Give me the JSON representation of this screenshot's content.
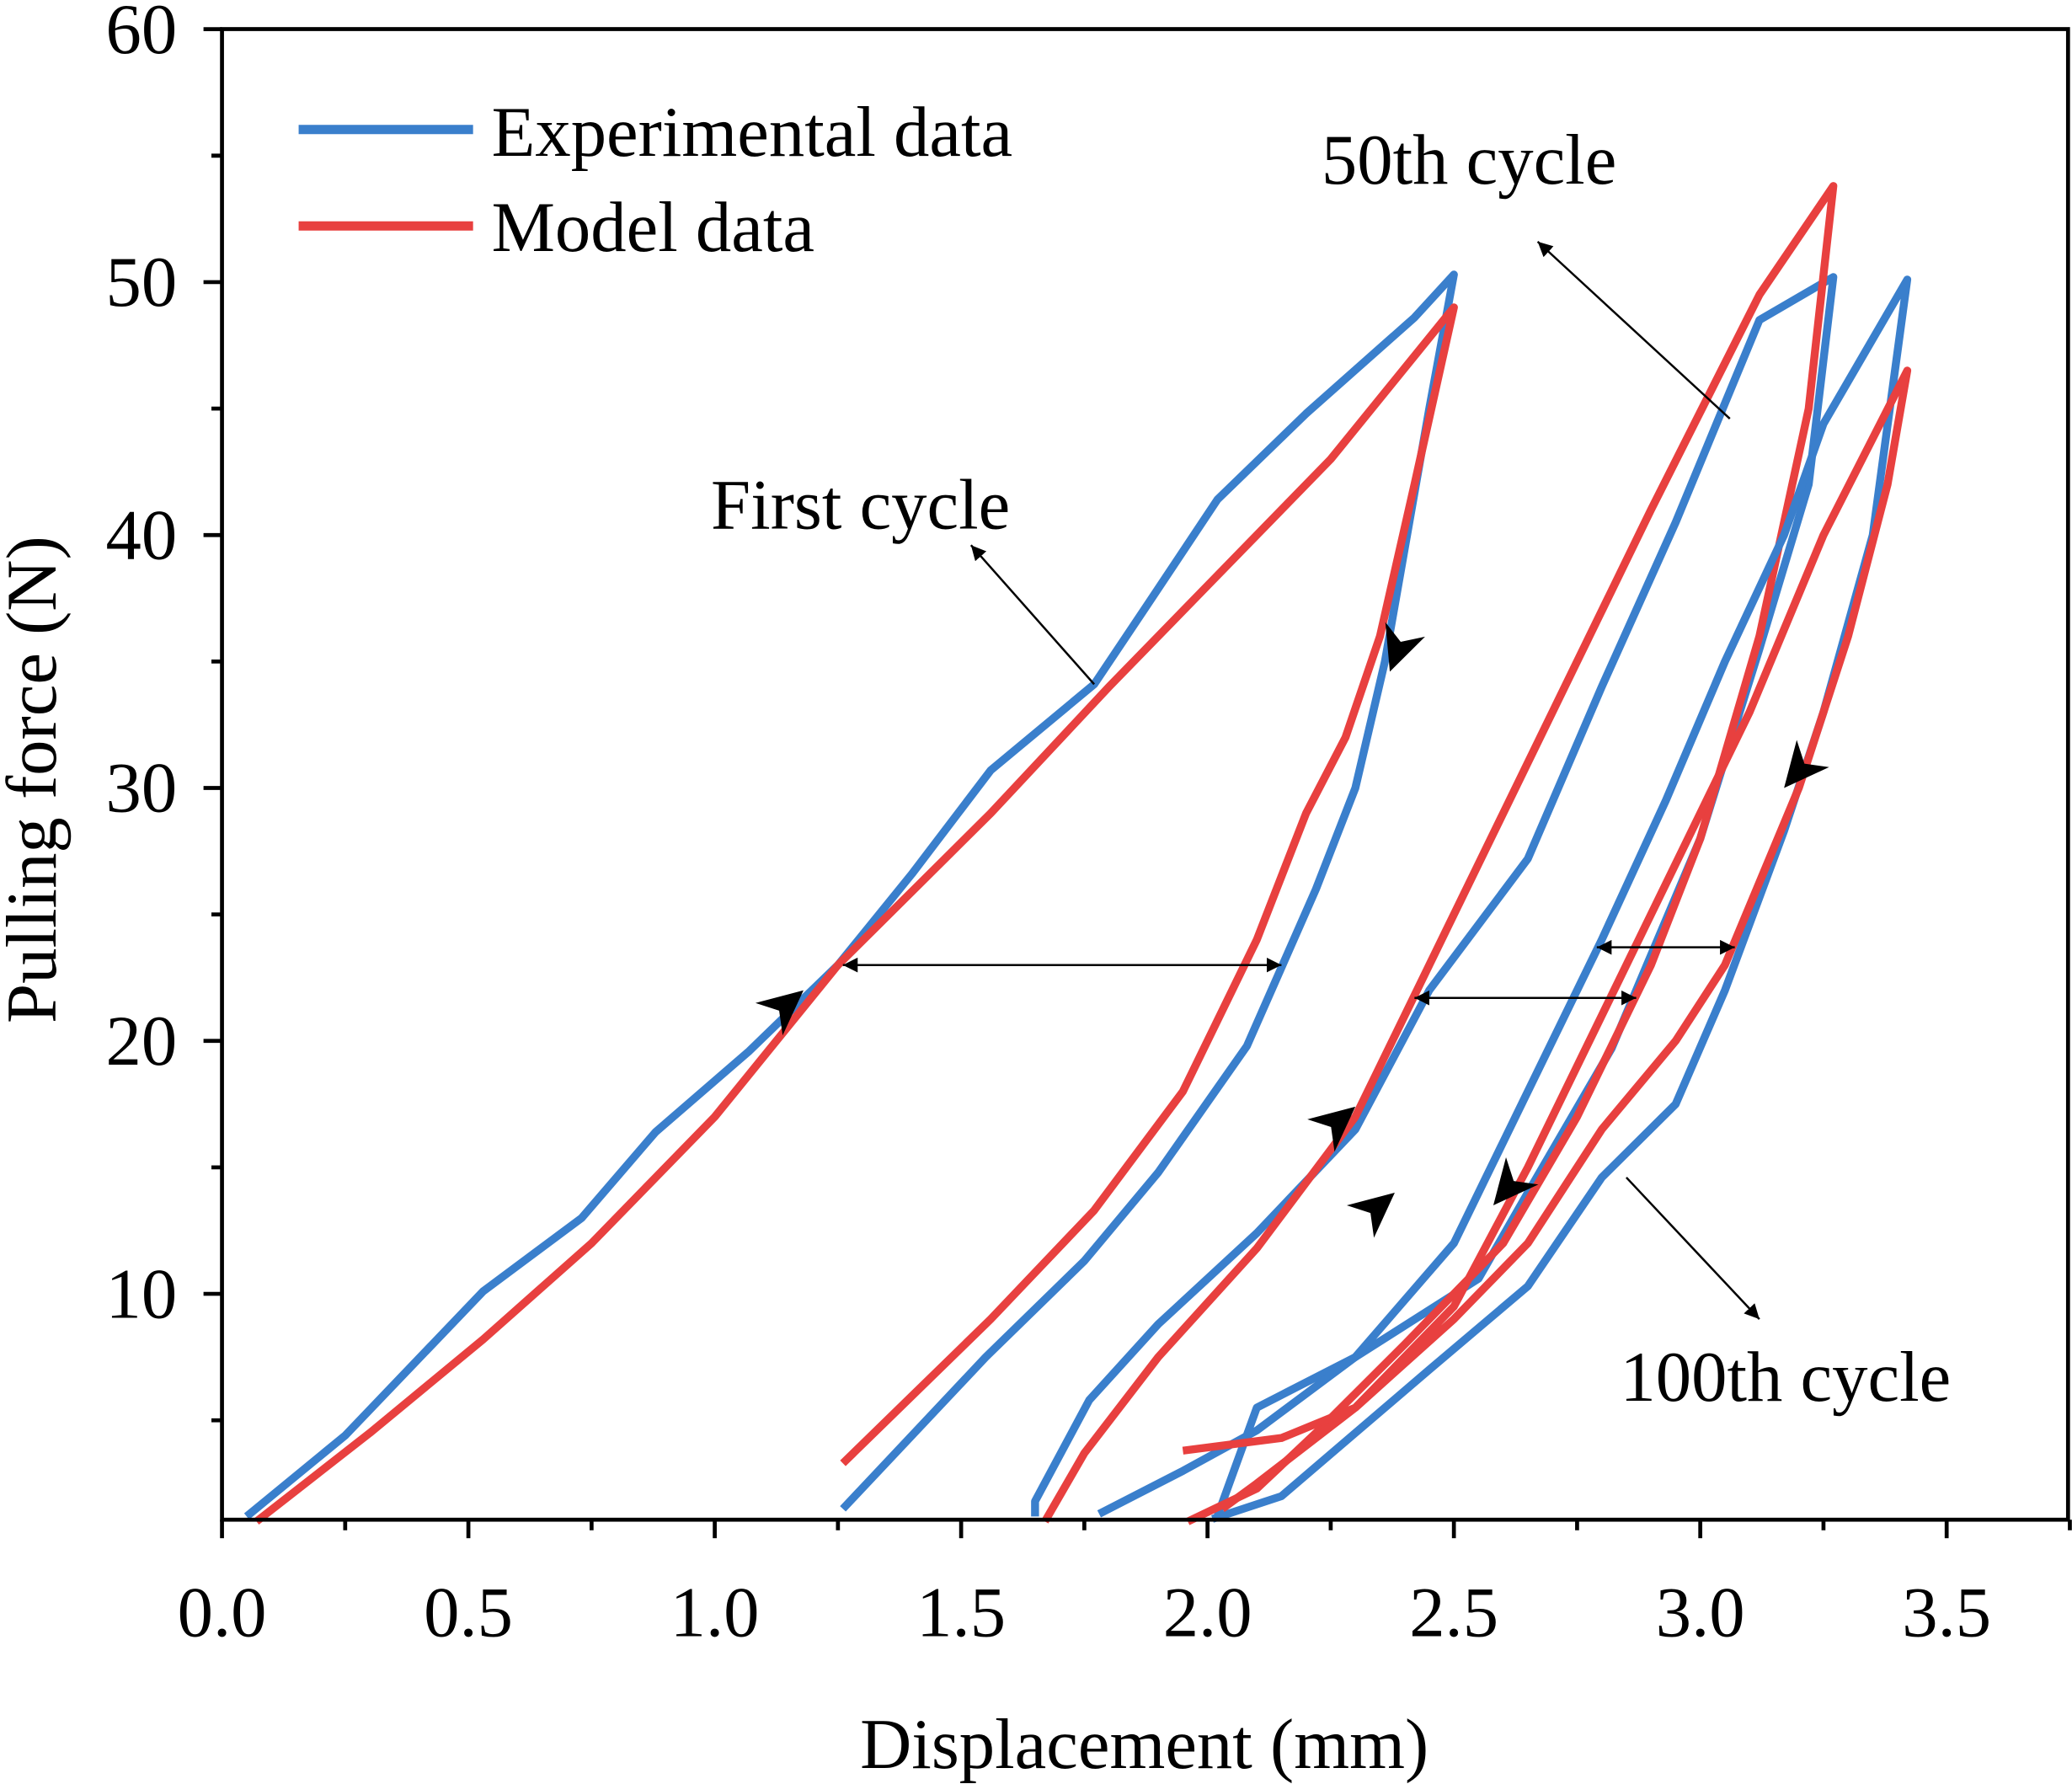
{
  "chart_data": {
    "type": "line",
    "xlabel": "Displacement (mm)",
    "ylabel": "Pulling force (N)",
    "xlim": [
      0,
      3.75
    ],
    "ylim": [
      1,
      60
    ],
    "xticks": [
      "0.0",
      "0.5",
      "1.0",
      "1.5",
      "2.0",
      "2.5",
      "3.0",
      "3.5"
    ],
    "xtick_values": [
      0,
      0.5,
      1,
      1.5,
      2,
      2.5,
      3,
      3.5
    ],
    "yticks": [
      "10",
      "20",
      "30",
      "40",
      "50",
      "60"
    ],
    "ytick_values": [
      10,
      20,
      30,
      40,
      50,
      60
    ],
    "grid": false,
    "legend_position": "top-left",
    "colors": {
      "experimental": "#3a7fcc",
      "model": "#e8403f"
    },
    "legend": [
      "Experimental data",
      "Model data"
    ],
    "annotations": {
      "first": "First cycle",
      "fiftieth": "50th cycle",
      "hundredth": "100th cycle"
    },
    "series": [
      {
        "name": "Experimental data",
        "cycle": "First cycle",
        "color_key": "experimental",
        "points": [
          [
            0.05,
            1.2
          ],
          [
            0.25,
            4.4
          ],
          [
            0.53,
            10.1
          ],
          [
            0.73,
            13
          ],
          [
            0.88,
            16.4
          ],
          [
            1.07,
            19.6
          ],
          [
            1.25,
            23
          ],
          [
            1.4,
            26.6
          ],
          [
            1.56,
            30.7
          ],
          [
            1.77,
            34.1
          ],
          [
            1.88,
            37.3
          ],
          [
            2.02,
            41.4
          ],
          [
            2.2,
            44.8
          ],
          [
            2.42,
            48.6
          ],
          [
            2.5,
            50.3
          ],
          [
            2.45,
            45
          ],
          [
            2.36,
            35
          ],
          [
            2.3,
            30
          ],
          [
            2.22,
            26
          ],
          [
            2.08,
            19.8
          ],
          [
            1.9,
            14.8
          ],
          [
            1.75,
            11.3
          ],
          [
            1.55,
            7.5
          ],
          [
            1.26,
            1.5
          ]
        ]
      },
      {
        "name": "Model data",
        "cycle": "First cycle",
        "color_key": "model",
        "points": [
          [
            0.07,
            1
          ],
          [
            0.3,
            4.5
          ],
          [
            0.53,
            8.2
          ],
          [
            0.75,
            12
          ],
          [
            1.0,
            17
          ],
          [
            1.25,
            23
          ],
          [
            1.56,
            29
          ],
          [
            1.8,
            34
          ],
          [
            2.0,
            38
          ],
          [
            2.25,
            43
          ],
          [
            2.5,
            49
          ],
          [
            2.42,
            42
          ],
          [
            2.35,
            36
          ],
          [
            2.28,
            32
          ],
          [
            2.2,
            29
          ],
          [
            2.1,
            24
          ],
          [
            1.95,
            18
          ],
          [
            1.77,
            13.3
          ],
          [
            1.56,
            9
          ],
          [
            1.26,
            3.3
          ]
        ]
      },
      {
        "name": "Experimental data",
        "cycle": "50th cycle",
        "color_key": "experimental",
        "points": [
          [
            1.65,
            1.2
          ],
          [
            1.65,
            1.8
          ],
          [
            1.76,
            5.8
          ],
          [
            1.9,
            8.8
          ],
          [
            2.1,
            12.4
          ],
          [
            2.3,
            16.5
          ],
          [
            2.45,
            22
          ],
          [
            2.65,
            27.2
          ],
          [
            2.8,
            34
          ],
          [
            2.95,
            40.5
          ],
          [
            3.12,
            48.5
          ],
          [
            3.27,
            50.2
          ],
          [
            3.22,
            42
          ],
          [
            3.12,
            35.5
          ],
          [
            3.0,
            28
          ],
          [
            2.82,
            19.7
          ],
          [
            2.65,
            14
          ],
          [
            2.55,
            10.6
          ],
          [
            2.3,
            7.5
          ],
          [
            2.1,
            5.5
          ],
          [
            2.02,
            1.2
          ]
        ]
      },
      {
        "name": "Model data",
        "cycle": "50th cycle",
        "color_key": "model",
        "points": [
          [
            1.67,
            1
          ],
          [
            1.75,
            3.7
          ],
          [
            1.9,
            7.5
          ],
          [
            2.1,
            11.8
          ],
          [
            2.3,
            17
          ],
          [
            2.45,
            23
          ],
          [
            2.6,
            29
          ],
          [
            2.75,
            35
          ],
          [
            2.9,
            41
          ],
          [
            3.12,
            49.5
          ],
          [
            3.27,
            53.8
          ],
          [
            3.22,
            45
          ],
          [
            3.12,
            36
          ],
          [
            3.0,
            28
          ],
          [
            2.9,
            23
          ],
          [
            2.75,
            17
          ],
          [
            2.6,
            12
          ],
          [
            2.4,
            8
          ],
          [
            2.22,
            4.5
          ],
          [
            2.1,
            2.3
          ],
          [
            1.96,
            1
          ]
        ]
      },
      {
        "name": "Experimental data",
        "cycle": "100th cycle",
        "color_key": "experimental",
        "points": [
          [
            1.78,
            1.3
          ],
          [
            1.95,
            3
          ],
          [
            2.1,
            4.6
          ],
          [
            2.3,
            7.5
          ],
          [
            2.5,
            12
          ],
          [
            2.65,
            18
          ],
          [
            2.8,
            24
          ],
          [
            2.93,
            29.5
          ],
          [
            3.05,
            35
          ],
          [
            3.17,
            40
          ],
          [
            3.25,
            44.4
          ],
          [
            3.42,
            50.1
          ],
          [
            3.35,
            40
          ],
          [
            3.25,
            33
          ],
          [
            3.17,
            28.3
          ],
          [
            3.05,
            22
          ],
          [
            2.95,
            17.5
          ],
          [
            2.8,
            14.6
          ],
          [
            2.65,
            10.3
          ],
          [
            2.45,
            7
          ],
          [
            2.3,
            4.5
          ],
          [
            2.15,
            2
          ],
          [
            2.01,
            1.1
          ]
        ]
      },
      {
        "name": "Model data",
        "cycle": "100th cycle",
        "color_key": "model",
        "points": [
          [
            1.95,
            3.8
          ],
          [
            2.15,
            4.3
          ],
          [
            2.3,
            5.5
          ],
          [
            2.5,
            9.5
          ],
          [
            2.65,
            15
          ],
          [
            2.8,
            21
          ],
          [
            2.95,
            27
          ],
          [
            3.1,
            33
          ],
          [
            3.25,
            40
          ],
          [
            3.42,
            46.5
          ],
          [
            3.38,
            42
          ],
          [
            3.3,
            36
          ],
          [
            3.2,
            30
          ],
          [
            3.05,
            23
          ],
          [
            2.95,
            20
          ],
          [
            2.8,
            16.5
          ],
          [
            2.65,
            12
          ],
          [
            2.5,
            9
          ],
          [
            2.3,
            5.5
          ],
          [
            2.1,
            2.5
          ],
          [
            2.03,
            1.5
          ]
        ]
      }
    ]
  }
}
